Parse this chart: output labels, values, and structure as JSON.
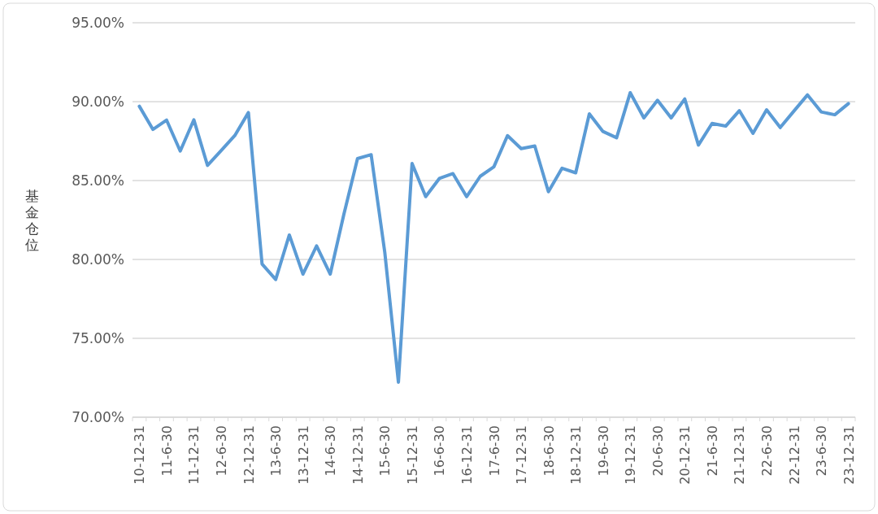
{
  "chart_data": {
    "type": "line",
    "ylabel": "基金仓位",
    "categories": [
      "10-12-31",
      null,
      "11-6-30",
      null,
      "11-12-31",
      null,
      "12-6-30",
      null,
      "12-12-31",
      null,
      "13-6-30",
      null,
      "13-12-31",
      null,
      "14-6-30",
      null,
      "14-12-31",
      null,
      "15-6-30",
      null,
      "15-12-31",
      null,
      "16-6-30",
      null,
      "16-12-31",
      null,
      "17-6-30",
      null,
      "17-12-31",
      null,
      "18-6-30",
      null,
      "18-12-31",
      null,
      "19-6-30",
      null,
      "19-12-31",
      null,
      "20-6-30",
      null,
      "20-12-31",
      null,
      "21-6-30",
      null,
      "21-12-31",
      null,
      "22-6-30",
      null,
      "22-12-31",
      null,
      "23-6-30",
      null,
      "23-12-31"
    ],
    "series": [
      {
        "color": "#5b9bd5",
        "values": [
          89.71,
          88.24,
          88.83,
          86.87,
          88.85,
          85.96,
          86.9,
          87.85,
          89.31,
          79.71,
          78.73,
          81.55,
          79.07,
          80.86,
          79.07,
          82.86,
          86.39,
          86.64,
          80.45,
          72.22,
          86.08,
          83.98,
          85.13,
          85.44,
          83.98,
          85.27,
          85.87,
          87.85,
          87.02,
          87.19,
          84.29,
          85.78,
          85.49,
          89.23,
          88.11,
          87.71,
          90.57,
          88.97,
          90.09,
          88.97,
          90.17,
          87.25,
          88.62,
          88.45,
          89.43,
          87.99,
          89.48,
          88.36,
          89.4,
          90.43,
          89.35,
          89.17,
          89.88
        ]
      }
    ],
    "ylim": [
      70,
      95
    ],
    "yticks": [
      {
        "value": 70,
        "label": "70.00%"
      },
      {
        "value": 75,
        "label": "75.00%"
      },
      {
        "value": 80,
        "label": "80.00%"
      },
      {
        "value": 85,
        "label": "85.00%"
      },
      {
        "value": 90,
        "label": "90.00%"
      },
      {
        "value": 95,
        "label": "95.00%"
      }
    ],
    "grid": "y"
  }
}
